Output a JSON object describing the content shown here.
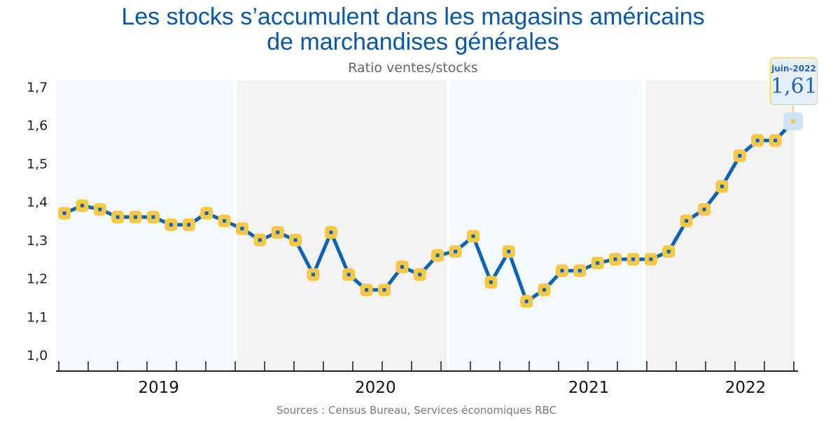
{
  "title_line1": "Les stocks s’accumulent dans les magasins américains",
  "title_line2": "de marchandises générales",
  "subtitle": "Ratio ventes/stocks",
  "source": "Sources : Census Bureau, Services économiques RBC",
  "callout": {
    "date": "juin-2022",
    "value": "1,61"
  },
  "colors": {
    "line": "#0a63b8",
    "marker": "#f7c843",
    "band_light": "#f4f9fd",
    "band_grey": "#f3f3f3",
    "callout_bg": "#e6f0fa"
  },
  "chart_data": {
    "type": "line",
    "title": "Les stocks s’accumulent dans les magasins américains de marchandises générales",
    "subtitle": "Ratio ventes/stocks",
    "ylim": [
      1.0,
      1.7
    ],
    "yticks": [
      "1,0",
      "1,1",
      "1,2",
      "1,3",
      "1,4",
      "1,5",
      "1,6",
      "1,7"
    ],
    "year_labels": [
      "2019",
      "2020",
      "2021",
      "2022"
    ],
    "bands": [
      {
        "from": "2019-01",
        "to": "2019-11",
        "shade": "light"
      },
      {
        "from": "2019-11",
        "to": "2020-11",
        "shade": "grey"
      },
      {
        "from": "2020-11",
        "to": "2021-10",
        "shade": "light"
      },
      {
        "from": "2021-10",
        "to": "2022-06",
        "shade": "grey"
      }
    ],
    "x": [
      "2019-01",
      "2019-02",
      "2019-03",
      "2019-04",
      "2019-05",
      "2019-06",
      "2019-07",
      "2019-08",
      "2019-09",
      "2019-10",
      "2019-11",
      "2019-12",
      "2020-01",
      "2020-02",
      "2020-03",
      "2020-04",
      "2020-05",
      "2020-06",
      "2020-07",
      "2020-08",
      "2020-09",
      "2020-10",
      "2020-11",
      "2020-12",
      "2021-01",
      "2021-02",
      "2021-03",
      "2021-04",
      "2021-05",
      "2021-06",
      "2021-07",
      "2021-08",
      "2021-09",
      "2021-10",
      "2021-11",
      "2021-12",
      "2022-01",
      "2022-02",
      "2022-03",
      "2022-04",
      "2022-05",
      "2022-06"
    ],
    "series": [
      {
        "values": [
          1.37,
          1.39,
          1.38,
          1.36,
          1.36,
          1.36,
          1.34,
          1.34,
          1.37,
          1.35,
          1.33,
          1.3,
          1.32,
          1.3,
          1.21,
          1.32,
          1.21,
          1.17,
          1.17,
          1.23,
          1.21,
          1.26,
          1.27,
          1.31,
          1.19,
          1.27,
          1.14,
          1.17,
          1.22,
          1.22,
          1.24,
          1.25,
          1.25,
          1.25,
          1.27,
          1.35,
          1.38,
          1.44,
          1.52,
          1.56,
          1.56,
          1.61
        ]
      }
    ]
  }
}
